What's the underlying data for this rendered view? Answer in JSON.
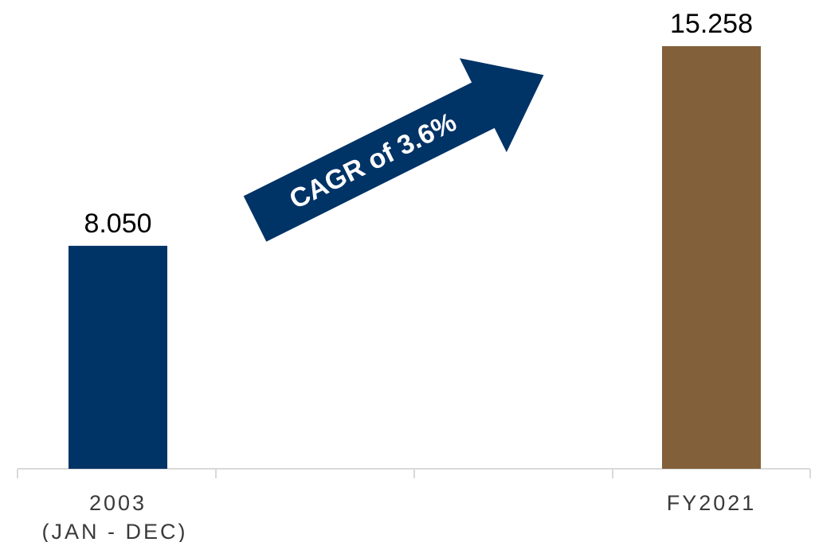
{
  "chart_data": {
    "type": "bar",
    "categories": [
      {
        "line1": "2003",
        "line2": "(JAN - DEC)"
      },
      {
        "line1": "FY2021",
        "line2": ""
      }
    ],
    "values": [
      8.05,
      15.258
    ],
    "value_labels": [
      "8.050",
      "15.258"
    ],
    "bar_colors": [
      "#003366",
      "#82603A"
    ],
    "title": "",
    "xlabel": "",
    "ylabel": "",
    "grid": false,
    "annotation": {
      "text": "CAGR of 3.6%",
      "shape": "arrow",
      "color": "#003366",
      "direction": "up-right"
    }
  }
}
